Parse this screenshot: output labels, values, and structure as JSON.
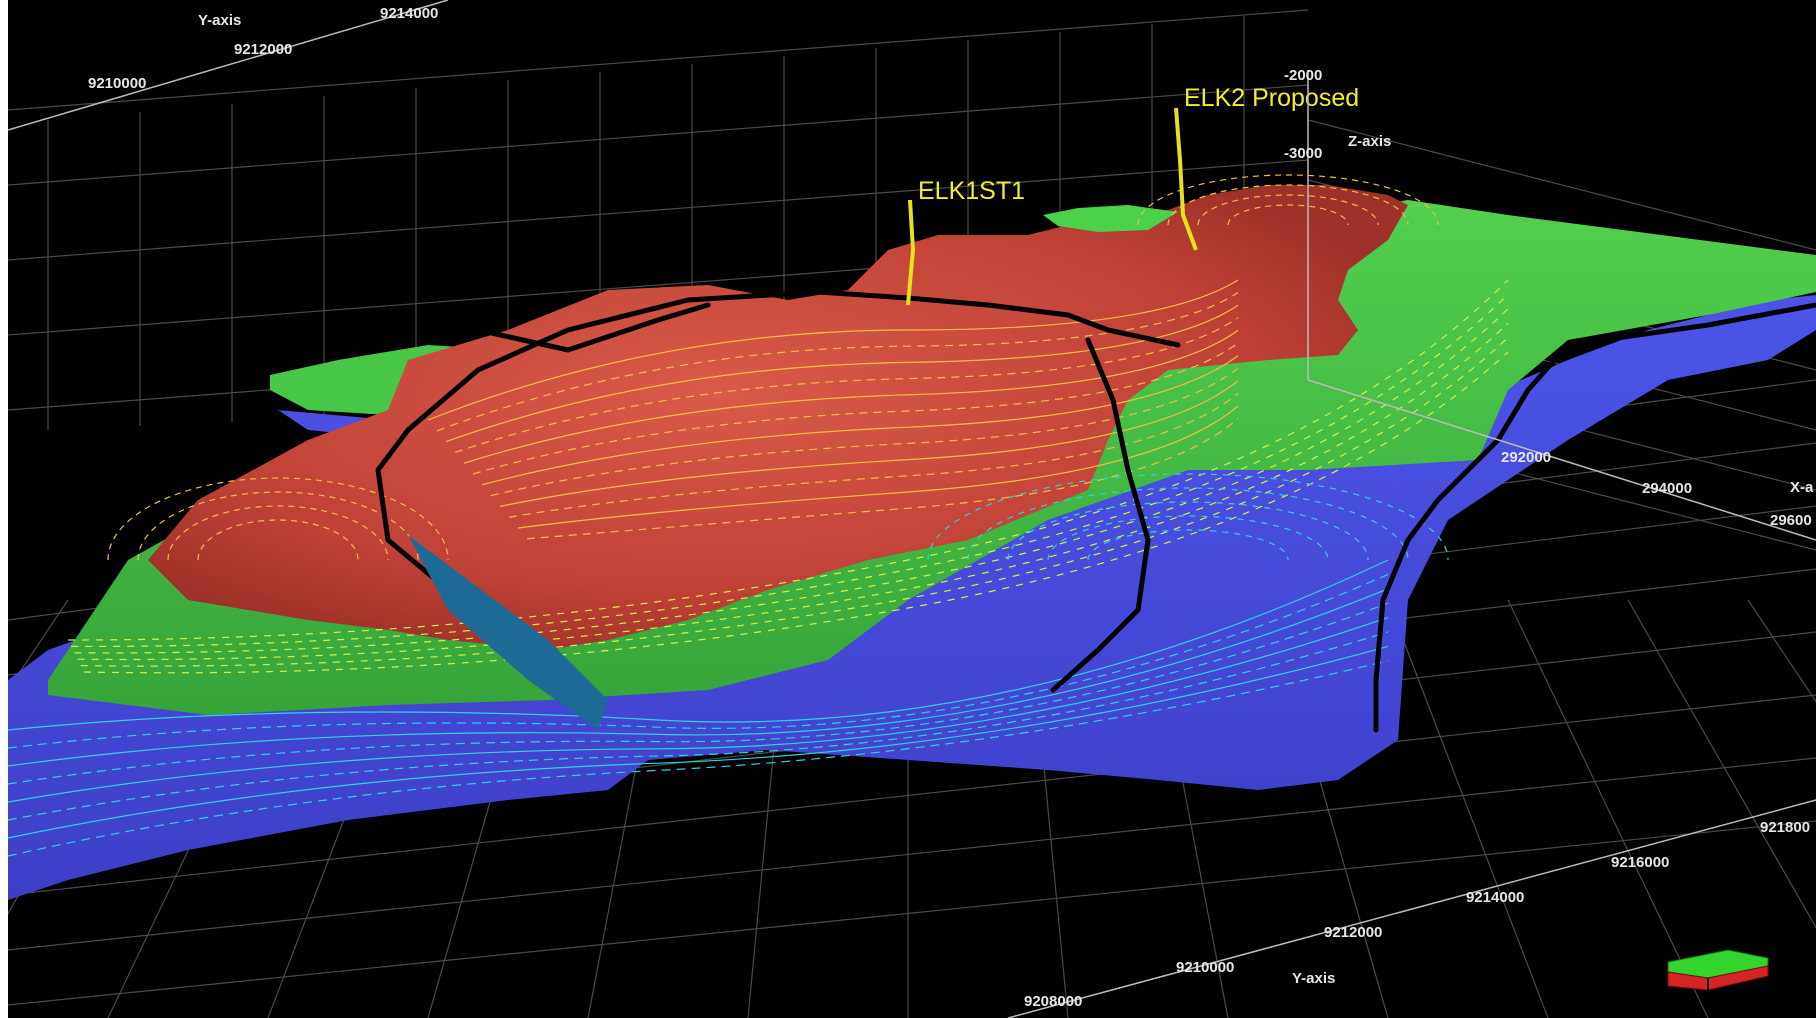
{
  "view": {
    "background_color": "#000000",
    "grid_color": "#4a4a4a"
  },
  "axes": {
    "y_axis_top": {
      "title": "Y-axis",
      "ticks": [
        "9214000",
        "9212000",
        "9210000"
      ]
    },
    "z_axis": {
      "title": "Z-axis",
      "ticks": [
        "-2000",
        "-3000"
      ]
    },
    "x_axis": {
      "title": "X-a",
      "ticks": [
        "292000",
        "294000",
        "29600"
      ]
    },
    "y_axis_bottom": {
      "title": "Y-axis",
      "ticks": [
        "9208000",
        "9210000",
        "9212000",
        "9214000",
        "9216000",
        "921800"
      ]
    }
  },
  "wells": [
    {
      "name": "ELK1ST1",
      "color": "#e6e21a"
    },
    {
      "name": "ELK2 Proposed",
      "color": "#e6e21a"
    }
  ],
  "surface_colors": {
    "high": "#c9473c",
    "mid": "#4cc24a",
    "low": "#4b4fe0",
    "fault": "#000000",
    "contour_high": "#f0c040",
    "contour_mid": "#d8f040",
    "contour_low": "#30d0e0"
  },
  "orientation_widget": {
    "name": "orientation-cube-icon",
    "top_color": "#33d42c",
    "side_color": "#d42424"
  }
}
